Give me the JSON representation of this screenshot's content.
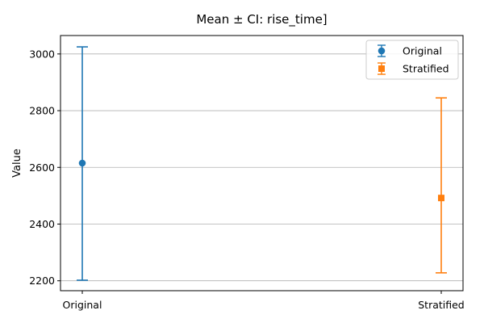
{
  "chart_data": {
    "type": "scatter",
    "title": "Mean ± CI: rise_time]",
    "xlabel": "",
    "ylabel": "Value",
    "categories": [
      "Original",
      "Stratified"
    ],
    "ylim": [
      2165,
      3065
    ],
    "yticks": [
      2200,
      2400,
      2600,
      2800,
      3000
    ],
    "grid": "y",
    "legend_placement": "top-right",
    "series": [
      {
        "name": "Original",
        "x": "Original",
        "mean": 2615,
        "ci_lower": 2202,
        "ci_upper": 3025,
        "color": "#1f77b4",
        "marker": "circle"
      },
      {
        "name": "Stratified",
        "x": "Stratified",
        "mean": 2492,
        "ci_lower": 2228,
        "ci_upper": 2845,
        "color": "#ff7f0e",
        "marker": "square"
      }
    ]
  }
}
